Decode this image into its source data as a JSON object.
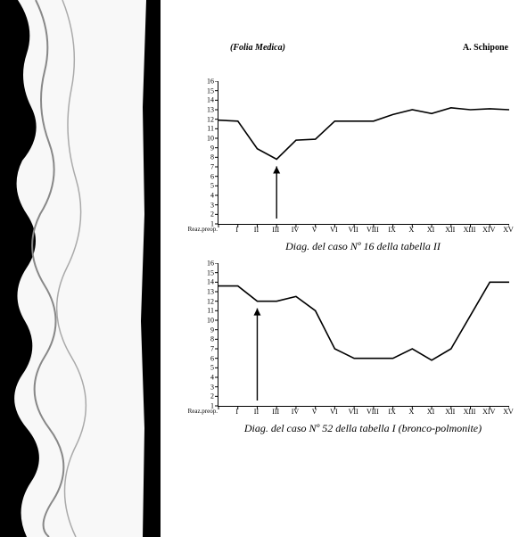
{
  "header": {
    "journal": "(Folia Medica)",
    "author": "A. Schipone"
  },
  "chart1": {
    "type": "line",
    "y_ticks": [
      1,
      2,
      3,
      4,
      5,
      6,
      7,
      8,
      9,
      10,
      11,
      12,
      13,
      14,
      15,
      16
    ],
    "x_labels": [
      "Reaz.preop.",
      "I",
      "II",
      "III",
      "IV",
      "V",
      "VI",
      "VII",
      "VIII",
      "IX",
      "X",
      "XI",
      "XII",
      "XIII",
      "XIV",
      "XV"
    ],
    "values": [
      11.9,
      11.8,
      8.9,
      7.8,
      9.8,
      9.9,
      11.8,
      11.8,
      11.8,
      12.5,
      13.0,
      12.6,
      13.2,
      13.0,
      13.1,
      13.0
    ],
    "ylim": [
      1,
      16
    ],
    "arrow_x_index": 3,
    "line_color": "#000000",
    "line_width": 1.6,
    "caption": "Diag. del caso Nº 16 della tabella II"
  },
  "chart2": {
    "type": "line",
    "y_ticks": [
      1,
      2,
      3,
      4,
      5,
      6,
      7,
      8,
      9,
      10,
      11,
      12,
      13,
      14,
      15,
      16
    ],
    "x_labels": [
      "Reaz.preop.",
      "I",
      "II",
      "III",
      "IV",
      "V",
      "VI",
      "VII",
      "VIII",
      "IX",
      "X",
      "XI",
      "XII",
      "XIII",
      "XIV",
      "XV"
    ],
    "values": [
      13.6,
      13.6,
      12.0,
      12.0,
      12.5,
      11.0,
      7.0,
      6.0,
      6.0,
      6.0,
      7.0,
      5.8,
      7.0,
      10.5,
      14.0,
      14.0
    ],
    "ylim": [
      1,
      16
    ],
    "arrow_x_index": 2,
    "line_color": "#000000",
    "line_width": 1.6,
    "caption": "Diag. del caso Nº 52 della tabella I (bronco-polmonite)"
  },
  "style": {
    "bg": "#ffffff",
    "axis_color": "#000000",
    "caption_fontsize": 12,
    "tick_fontsize": 8
  }
}
